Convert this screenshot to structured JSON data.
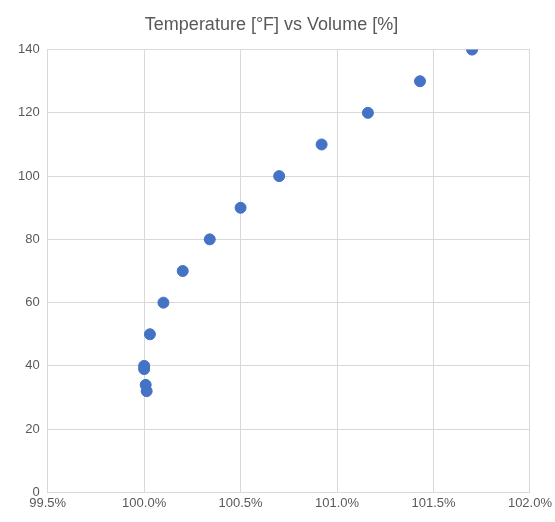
{
  "chart_data": {
    "type": "scatter",
    "title": "Temperature [°F] vs Volume [%]",
    "series": [
      {
        "name": "Temperature",
        "color": "#4472c4",
        "marker": "circle",
        "x": [
          100.013,
          100.008,
          100.0,
          100.0,
          100.03,
          100.1,
          100.2,
          100.34,
          100.5,
          100.7,
          100.92,
          101.16,
          101.43,
          101.7
        ],
        "values": [
          32,
          34,
          39,
          40,
          50,
          60,
          70,
          80,
          90,
          100,
          110,
          120,
          130,
          140
        ]
      }
    ],
    "xlim": [
      99.5,
      102.0
    ],
    "xticks": [
      {
        "value": 99.5,
        "label": "99.5%"
      },
      {
        "value": 100.0,
        "label": "100.0%"
      },
      {
        "value": 100.5,
        "label": "100.5%"
      },
      {
        "value": 101.0,
        "label": "101.0%"
      },
      {
        "value": 101.5,
        "label": "101.5%"
      },
      {
        "value": 102.0,
        "label": "102.0%"
      }
    ],
    "ylim": [
      0,
      140
    ],
    "yticks": [
      0,
      20,
      40,
      60,
      80,
      100,
      120,
      140
    ],
    "grid": true
  }
}
